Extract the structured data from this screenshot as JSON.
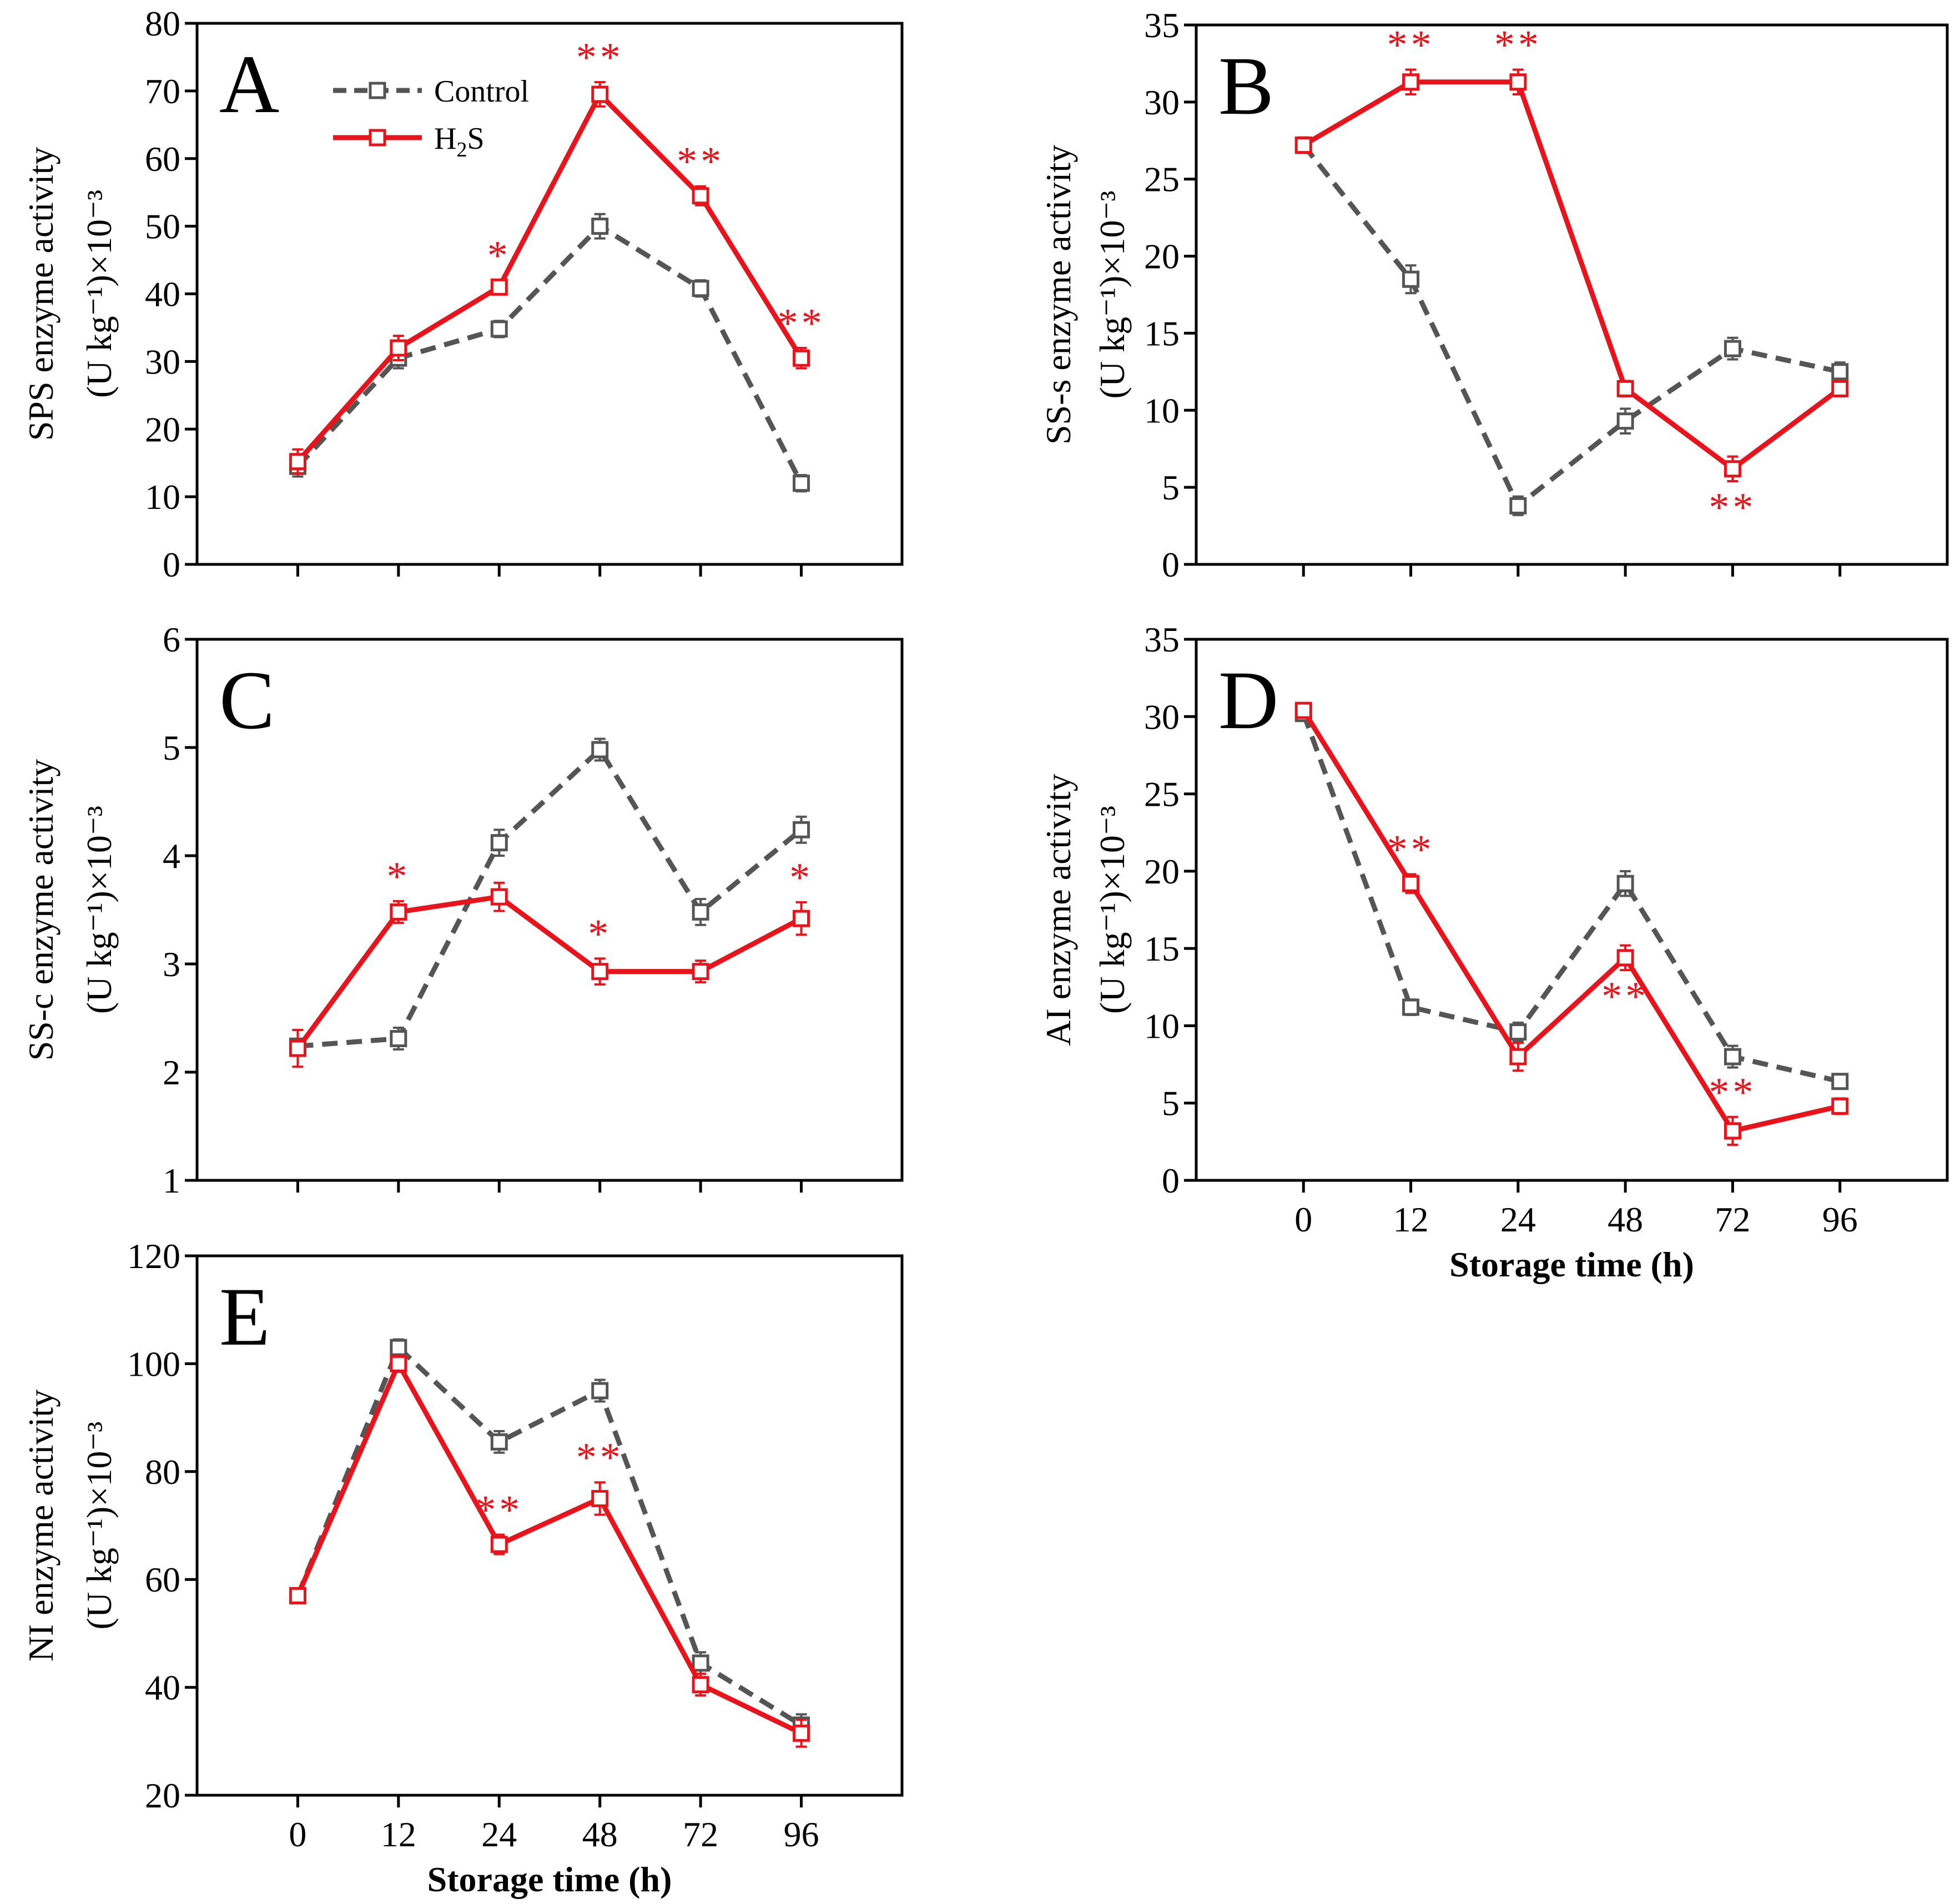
{
  "colors": {
    "control": "#555555",
    "h2s": "#e8141c",
    "axis": "#000000"
  },
  "chart_data": [
    {
      "type": "line",
      "panel": "A",
      "x_categories": [
        "0",
        "12",
        "24",
        "48",
        "72",
        "96"
      ],
      "x_tick_labels_shown": false,
      "xlabel": "",
      "ylabel_line1": "SPS enzyme activity",
      "ylabel_line2": "(U kg⁻¹)×10⁻³",
      "ylim": [
        0,
        80
      ],
      "yticks": [
        0,
        10,
        20,
        30,
        40,
        50,
        60,
        70,
        80
      ],
      "legend": {
        "position": "top-left",
        "entries": [
          {
            "series": "Control",
            "label": "Control"
          },
          {
            "series": "H2S",
            "label_main": "H",
            "label_sub": "2",
            "label_tail": "S"
          }
        ]
      },
      "series": [
        {
          "name": "Control",
          "style": "dashed",
          "values": [
            14.5,
            30.5,
            34.8,
            50.0,
            40.8,
            12.0
          ],
          "errors": [
            1.5,
            1.5,
            1.2,
            1.8,
            1.2,
            1.2
          ]
        },
        {
          "name": "H2S",
          "style": "solid",
          "values": [
            15.2,
            32.0,
            41.0,
            69.5,
            54.5,
            30.5
          ],
          "errors": [
            1.8,
            1.8,
            1.0,
            1.8,
            1.4,
            1.5
          ]
        }
      ],
      "significance": [
        "",
        "",
        "*",
        "**",
        "**",
        "**"
      ],
      "significance_position": [
        "above",
        "above",
        "above",
        "above",
        "above",
        "above"
      ]
    },
    {
      "type": "line",
      "panel": "B",
      "x_categories": [
        "0",
        "12",
        "24",
        "48",
        "72",
        "96"
      ],
      "x_tick_labels_shown": false,
      "xlabel": "",
      "ylabel_line1": "SS-s enzyme activity",
      "ylabel_line2": "(U kg⁻¹)×10⁻³",
      "ylim": [
        0,
        35
      ],
      "yticks": [
        0,
        5,
        10,
        15,
        20,
        25,
        30,
        35
      ],
      "series": [
        {
          "name": "Control",
          "style": "dashed",
          "values": [
            27.2,
            18.5,
            3.8,
            9.3,
            14.0,
            12.5
          ],
          "errors": [
            0.5,
            0.9,
            0.6,
            0.8,
            0.7,
            0.6
          ]
        },
        {
          "name": "H2S",
          "style": "solid",
          "values": [
            27.2,
            31.3,
            31.3,
            11.4,
            6.2,
            11.4
          ],
          "errors": [
            0.5,
            0.8,
            0.8,
            0.5,
            0.8,
            0.5
          ]
        }
      ],
      "significance": [
        "",
        "**",
        "**",
        "",
        "**",
        ""
      ],
      "significance_position": [
        "above",
        "above",
        "above",
        "above",
        "below",
        "above"
      ]
    },
    {
      "type": "line",
      "panel": "C",
      "x_categories": [
        "0",
        "12",
        "24",
        "48",
        "72",
        "96"
      ],
      "x_tick_labels_shown": false,
      "xlabel": "",
      "ylabel_line1": "SS-c enzyme activity",
      "ylabel_line2": "(U kg⁻¹)×10⁻³",
      "ylim": [
        1,
        6
      ],
      "yticks": [
        1,
        2,
        3,
        4,
        5,
        6
      ],
      "series": [
        {
          "name": "Control",
          "style": "dashed",
          "values": [
            2.24,
            2.31,
            4.12,
            4.98,
            3.48,
            4.24
          ],
          "errors": [
            0.06,
            0.1,
            0.12,
            0.1,
            0.12,
            0.12
          ]
        },
        {
          "name": "H2S",
          "style": "solid",
          "values": [
            2.22,
            3.48,
            3.62,
            2.93,
            2.93,
            3.42
          ],
          "errors": [
            0.17,
            0.1,
            0.13,
            0.12,
            0.1,
            0.15
          ]
        }
      ],
      "significance": [
        "",
        "*",
        "",
        "*",
        "",
        "*"
      ],
      "significance_position": [
        "above",
        "above",
        "above",
        "above",
        "above",
        "above"
      ]
    },
    {
      "type": "line",
      "panel": "D",
      "x_categories": [
        "0",
        "12",
        "24",
        "48",
        "72",
        "96"
      ],
      "x_tick_labels_shown": true,
      "xlabel": "Storage time (h)",
      "ylabel_line1": "AI enzyme activity",
      "ylabel_line2": "(U kg⁻¹)×10⁻³",
      "ylim": [
        0,
        35
      ],
      "yticks": [
        0,
        5,
        10,
        15,
        20,
        25,
        30,
        35
      ],
      "series": [
        {
          "name": "Control",
          "style": "dashed",
          "values": [
            30.2,
            11.2,
            9.6,
            19.2,
            8.0,
            6.4
          ],
          "errors": [
            0.4,
            0.5,
            0.6,
            0.8,
            0.7,
            0.4
          ]
        },
        {
          "name": "H2S",
          "style": "solid",
          "values": [
            30.4,
            19.2,
            8.0,
            14.4,
            3.2,
            4.8
          ],
          "errors": [
            0.4,
            0.6,
            0.9,
            0.8,
            0.9,
            0.5
          ]
        }
      ],
      "significance": [
        "",
        "**",
        "",
        "**",
        "**",
        ""
      ],
      "significance_position": [
        "above",
        "above",
        "above",
        "below",
        "above",
        "above"
      ]
    },
    {
      "type": "line",
      "panel": "E",
      "x_categories": [
        "0",
        "12",
        "24",
        "48",
        "72",
        "96"
      ],
      "x_tick_labels_shown": true,
      "xlabel": "Storage time (h)",
      "ylabel_line1": "NI enzyme activity",
      "ylabel_line2": "(U kg⁻¹)×10⁻³",
      "ylim": [
        20,
        120
      ],
      "yticks": [
        20,
        40,
        60,
        80,
        100,
        120
      ],
      "series": [
        {
          "name": "Control",
          "style": "dashed",
          "values": [
            57.0,
            103.0,
            85.5,
            95.0,
            44.5,
            33.0
          ],
          "errors": [
            1.0,
            1.5,
            2.0,
            2.0,
            2.0,
            2.0
          ]
        },
        {
          "name": "H2S",
          "style": "solid",
          "values": [
            57.0,
            100.0,
            66.5,
            75.0,
            40.5,
            31.5
          ],
          "errors": [
            1.0,
            1.5,
            1.8,
            3.0,
            2.0,
            2.5
          ]
        }
      ],
      "significance": [
        "",
        "",
        "**",
        "**",
        "",
        ""
      ],
      "significance_position": [
        "above",
        "above",
        "above",
        "above",
        "above",
        "above"
      ]
    }
  ]
}
